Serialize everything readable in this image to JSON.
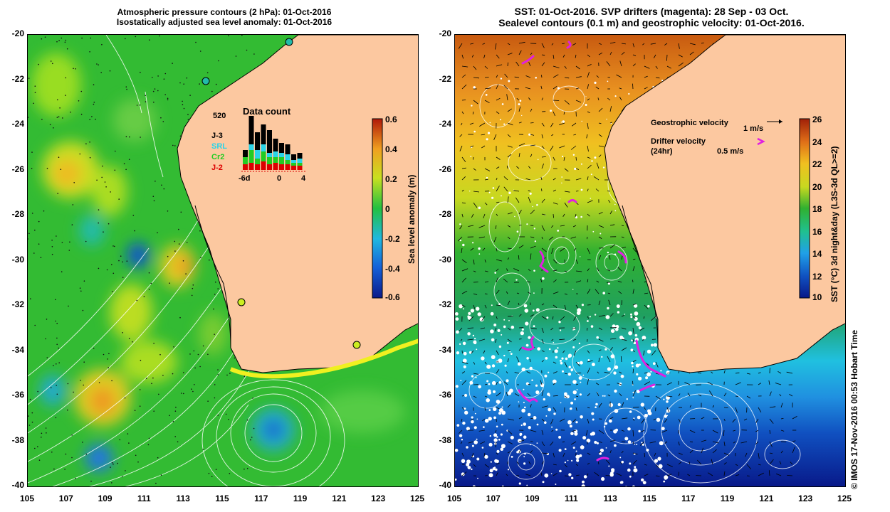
{
  "left_panel": {
    "title_line1": "Atmospheric pressure contours (2 hPa): 01-Oct-2016",
    "title_line2": "Isostatically adjusted sea level anomaly: 01-Oct-2016",
    "colorbar": {
      "label": "Sea level anomaly (m)",
      "ticks": [
        "0.6",
        "0.4",
        "0.2",
        "0",
        "-0.2",
        "-0.4",
        "-0.6"
      ]
    },
    "inset": {
      "title": "Data count",
      "max_label": "520",
      "legend": [
        {
          "name": "J-3",
          "color": "#000000"
        },
        {
          "name": "SRL",
          "color": "#2ad4e8"
        },
        {
          "name": "Cr2",
          "color": "#22cc22"
        },
        {
          "name": "J-2",
          "color": "#dd0000"
        }
      ],
      "x_labels": [
        "-6d",
        "0",
        "4"
      ]
    }
  },
  "right_panel": {
    "title_line1": "SST: 01-Oct-2016. SVP drifters (magenta): 28 Sep - 03 Oct.",
    "title_line2": "Sealevel contours (0.1 m) and geostrophic velocity: 01-Oct-2016.",
    "colorbar": {
      "label": "SST (°C) 3d night&day (L3S-3d QL>=2)",
      "ticks": [
        "26",
        "24",
        "22",
        "20",
        "18",
        "16",
        "14",
        "12",
        "10"
      ]
    },
    "legend": {
      "geo_label": "Geostrophic velocity",
      "geo_scale": "1 m/s",
      "drifter_label": "Drifter velocity",
      "drifter_sub": "(24hr)",
      "drifter_scale": "0.5 m/s"
    },
    "credit": "© IMOS 17-Nov-2016 00:53 Hobart Time"
  },
  "axes": {
    "y_ticks": [
      "-20",
      "-22",
      "-24",
      "-26",
      "-28",
      "-30",
      "-32",
      "-34",
      "-36",
      "-38",
      "-40"
    ],
    "x_ticks": [
      "105",
      "107",
      "109",
      "111",
      "113",
      "115",
      "117",
      "119",
      "121",
      "123",
      "125"
    ]
  }
}
